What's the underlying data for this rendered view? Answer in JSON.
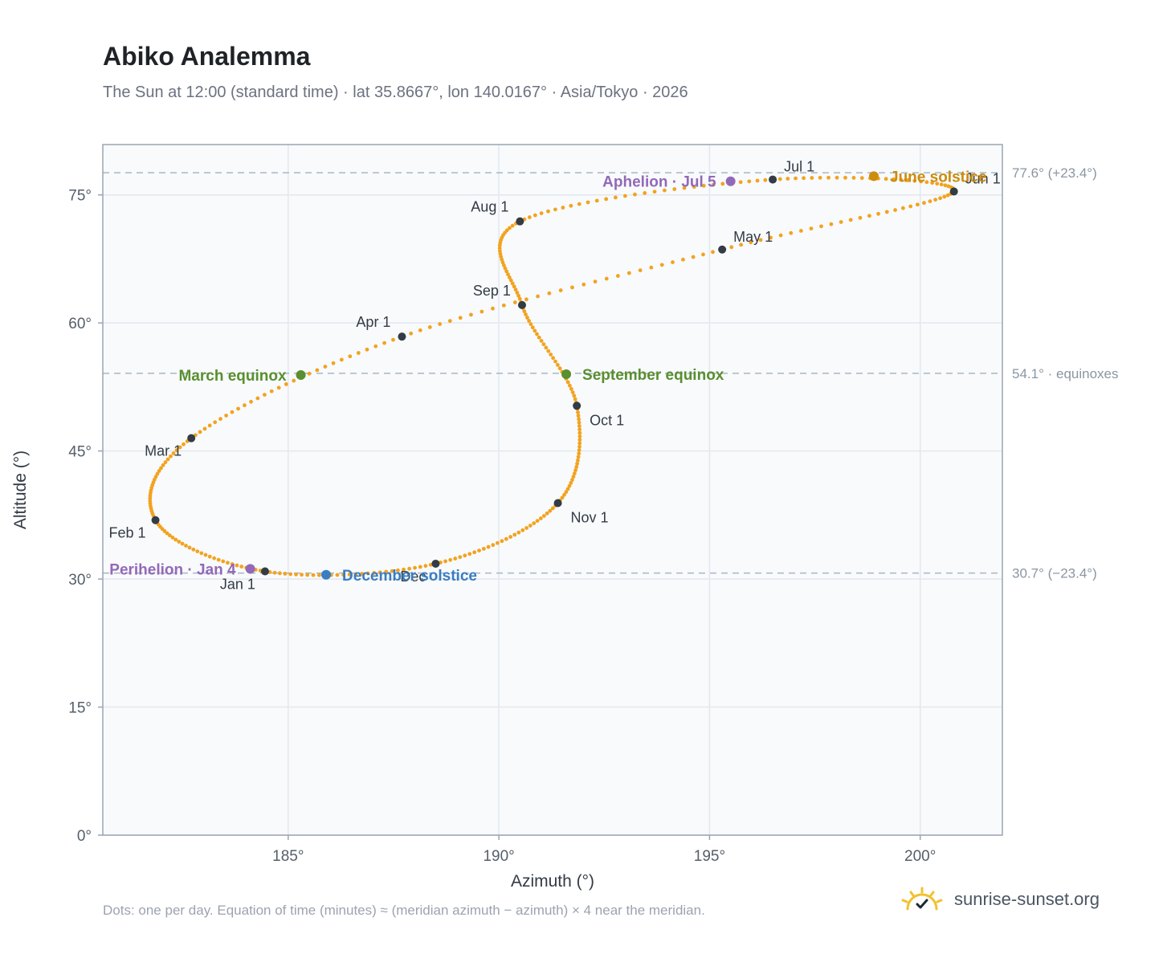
{
  "title": "Abiko Analemma",
  "subtitle": "The Sun at 12:00 (standard time) · lat 35.8667°, lon 140.0167° · Asia/Tokyo · 2026",
  "footnote": "Dots: one per day. Equation of time (minutes) ≈ (meridian azimuth − azimuth) × 4 near the meridian.",
  "brand": {
    "name": "sunrise-sunset.org",
    "icon": "sun-icon"
  },
  "colors": {
    "curve": "#f2a31f",
    "month": "#333b45",
    "equinox": "#5a8f2f",
    "june_solstice": "#cc8c0e",
    "december_solstice": "#3a7dc0",
    "apsis": "#9269b8",
    "plot_bg": "#f8fafc",
    "grid": "#e3e8ee",
    "ref_line": "#a8b7c4",
    "axis_text": "#555e69"
  },
  "chart_data": {
    "type": "scatter",
    "xlabel": "Azimuth (°)",
    "ylabel": "Altitude (°)",
    "xlim": [
      180.6,
      201.95
    ],
    "ylim": [
      0,
      80.9
    ],
    "xticks": [
      185,
      190,
      195,
      200
    ],
    "yticks": [
      0,
      15,
      30,
      45,
      60,
      75
    ],
    "xtick_labels": [
      "185°",
      "190°",
      "195°",
      "200°"
    ],
    "ytick_labels": [
      "0°",
      "15°",
      "30°",
      "45°",
      "60°",
      "75°"
    ],
    "grid": true,
    "analemma_control_points": [
      {
        "date": "Jan 1",
        "az": 184.45,
        "alt": 30.9
      },
      {
        "date": "Feb 1",
        "az": 181.85,
        "alt": 36.9
      },
      {
        "date": "Mar 1",
        "az": 182.7,
        "alt": 46.5
      },
      {
        "date": "Apr 1",
        "az": 187.7,
        "alt": 58.4
      },
      {
        "date": "May 1",
        "az": 195.3,
        "alt": 68.6
      },
      {
        "date": "Jun 1",
        "az": 200.8,
        "alt": 75.4
      },
      {
        "date": "Jul 1",
        "az": 196.5,
        "alt": 76.8
      },
      {
        "date": "Aug 1",
        "az": 190.5,
        "alt": 71.9
      },
      {
        "date": "Sep 1",
        "az": 190.55,
        "alt": 62.1
      },
      {
        "date": "Oct 1",
        "az": 191.85,
        "alt": 50.3
      },
      {
        "date": "Nov 1",
        "az": 191.4,
        "alt": 38.9
      },
      {
        "date": "Dec 1",
        "az": 188.5,
        "alt": 31.8
      },
      {
        "date": "Jan 1",
        "az": 184.45,
        "alt": 30.9
      }
    ],
    "month_markers": [
      {
        "label": "Jan 1",
        "az": 184.45,
        "alt": 30.9,
        "anchor": "below-left"
      },
      {
        "label": "Feb 1",
        "az": 181.85,
        "alt": 36.9,
        "anchor": "below-left"
      },
      {
        "label": "Mar 1",
        "az": 182.7,
        "alt": 46.5,
        "anchor": "below-left"
      },
      {
        "label": "Apr 1",
        "az": 187.7,
        "alt": 58.4,
        "anchor": "above-left"
      },
      {
        "label": "May 1",
        "az": 195.3,
        "alt": 68.6,
        "anchor": "above-right"
      },
      {
        "label": "Jun 1",
        "az": 200.8,
        "alt": 75.4,
        "anchor": "above-right"
      },
      {
        "label": "Jul 1",
        "az": 196.5,
        "alt": 76.8,
        "anchor": "above-right"
      },
      {
        "label": "Aug 1",
        "az": 190.5,
        "alt": 71.9,
        "anchor": "above-left"
      },
      {
        "label": "Sep 1",
        "az": 190.55,
        "alt": 62.1,
        "anchor": "above-left"
      },
      {
        "label": "Oct 1",
        "az": 191.85,
        "alt": 50.3,
        "anchor": "below-right"
      },
      {
        "label": "Nov 1",
        "az": 191.4,
        "alt": 38.9,
        "anchor": "below-right"
      },
      {
        "label": "Dec",
        "az": 188.5,
        "alt": 31.8,
        "anchor": "below-left"
      }
    ],
    "special_points": [
      {
        "label": "March equinox",
        "az": 185.3,
        "alt": 53.9,
        "color": "#5a8f2f",
        "side": "left"
      },
      {
        "label": "September equinox",
        "az": 191.6,
        "alt": 54.0,
        "color": "#5a8f2f",
        "side": "right"
      },
      {
        "label": "June solstice",
        "az": 198.9,
        "alt": 77.2,
        "color": "#cc8c0e",
        "side": "right"
      },
      {
        "label": "December solstice",
        "az": 185.9,
        "alt": 30.5,
        "color": "#3a7dc0",
        "side": "right"
      },
      {
        "label": "Aphelion · Jul 5",
        "az": 195.5,
        "alt": 76.6,
        "color": "#9269b8",
        "side": "left"
      },
      {
        "label": "Perihelion · Jan 4",
        "az": 184.1,
        "alt": 31.2,
        "color": "#9269b8",
        "side": "left"
      }
    ],
    "reference_lines": [
      {
        "alt": 77.6,
        "label": "77.6° (+23.4°)"
      },
      {
        "alt": 54.1,
        "label": "54.1° · equinoxes"
      },
      {
        "alt": 30.7,
        "label": "30.7° (−23.4°)"
      }
    ]
  }
}
